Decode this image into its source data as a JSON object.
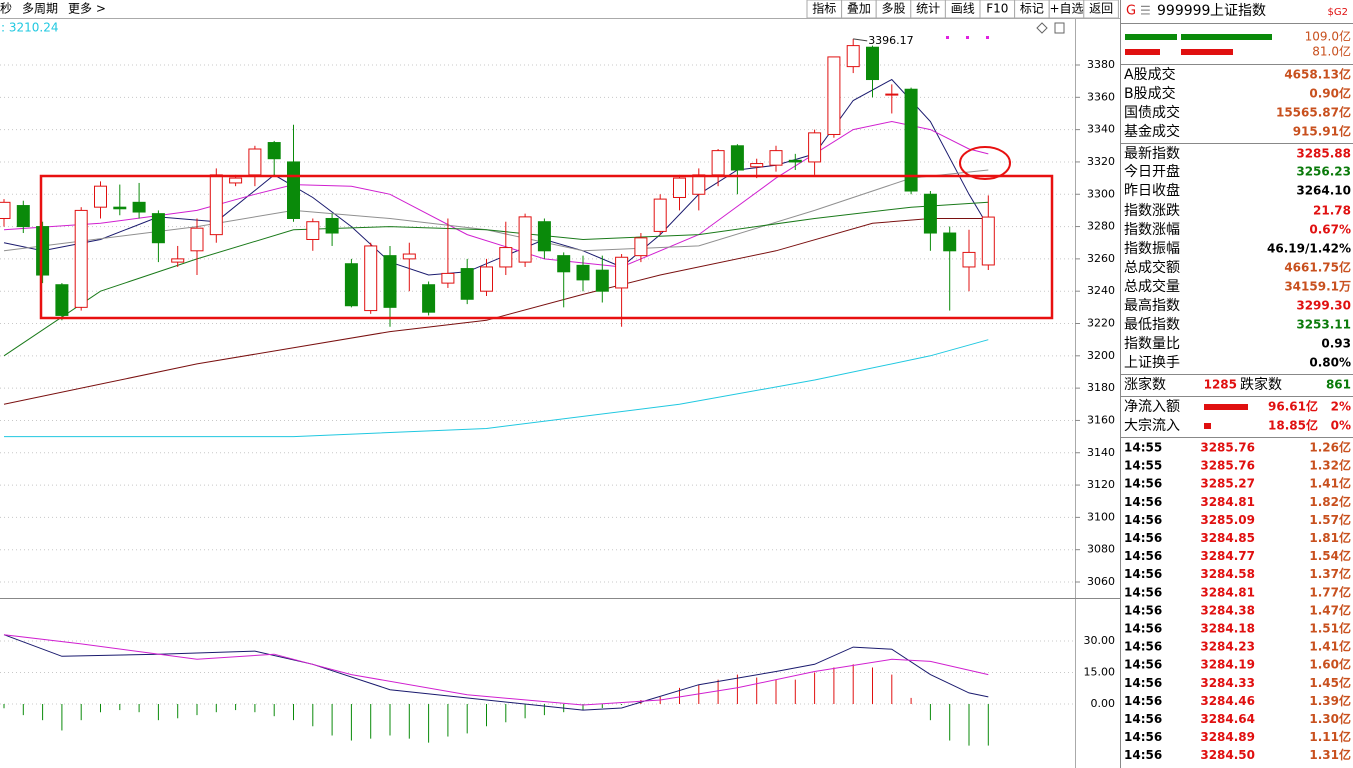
{
  "toolbar": {
    "left": [
      "秒",
      "多周期",
      "更多 >"
    ],
    "buttons": [
      "指标",
      "叠加",
      "多股",
      "统计",
      "画线",
      "F10",
      "标记",
      "+自选",
      "返回"
    ]
  },
  "kline": {
    "ma_label": ": 3210.24",
    "up_color": "#e01010",
    "down_color": "#0a8a0a",
    "price_ticks": [
      3380,
      3360,
      3340,
      3320,
      3300,
      3280,
      3260,
      3240,
      3220,
      3200,
      3180,
      3160,
      3140,
      3120,
      3100,
      3080,
      3060
    ],
    "candles": [
      {
        "open": 3285,
        "high": 3297,
        "low": 3280,
        "close": 3295
      },
      {
        "open": 3293,
        "high": 3296,
        "low": 3276,
        "close": 3280
      },
      {
        "open": 3280,
        "high": 3283,
        "low": 3245,
        "close": 3250
      },
      {
        "open": 3244,
        "high": 3245,
        "low": 3222,
        "close": 3225
      },
      {
        "open": 3230,
        "high": 3292,
        "low": 3228,
        "close": 3290
      },
      {
        "open": 3292,
        "high": 3308,
        "low": 3285,
        "close": 3305
      },
      {
        "open": 3292,
        "high": 3306,
        "low": 3287,
        "close": 3291
      },
      {
        "open": 3295,
        "high": 3307,
        "low": 3285,
        "close": 3289
      },
      {
        "open": 3288,
        "high": 3290,
        "low": 3258,
        "close": 3270
      },
      {
        "open": 3258,
        "high": 3268,
        "low": 3255,
        "close": 3260
      },
      {
        "open": 3265,
        "high": 3285,
        "low": 3250,
        "close": 3279
      },
      {
        "open": 3275,
        "high": 3316,
        "low": 3270,
        "close": 3312
      },
      {
        "open": 3307,
        "high": 3312,
        "low": 3305,
        "close": 3310
      },
      {
        "open": 3312,
        "high": 3330,
        "low": 3305,
        "close": 3328
      },
      {
        "open": 3332,
        "high": 3333,
        "low": 3312,
        "close": 3322
      },
      {
        "open": 3320,
        "high": 3343,
        "low": 3283,
        "close": 3285
      },
      {
        "open": 3272,
        "high": 3285,
        "low": 3265,
        "close": 3283
      },
      {
        "open": 3285,
        "high": 3288,
        "low": 3268,
        "close": 3276
      },
      {
        "open": 3257,
        "high": 3260,
        "low": 3230,
        "close": 3231
      },
      {
        "open": 3228,
        "high": 3270,
        "low": 3226,
        "close": 3268
      },
      {
        "open": 3262,
        "high": 3268,
        "low": 3218,
        "close": 3230
      },
      {
        "open": 3260,
        "high": 3270,
        "low": 3240,
        "close": 3263
      },
      {
        "open": 3244,
        "high": 3246,
        "low": 3225,
        "close": 3227
      },
      {
        "open": 3245,
        "high": 3285,
        "low": 3242,
        "close": 3251
      },
      {
        "open": 3254,
        "high": 3260,
        "low": 3232,
        "close": 3235
      },
      {
        "open": 3240,
        "high": 3260,
        "low": 3237,
        "close": 3255
      },
      {
        "open": 3255,
        "high": 3283,
        "low": 3250,
        "close": 3267
      },
      {
        "open": 3258,
        "high": 3288,
        "low": 3255,
        "close": 3286
      },
      {
        "open": 3283,
        "high": 3285,
        "low": 3260,
        "close": 3265
      },
      {
        "open": 3262,
        "high": 3264,
        "low": 3230,
        "close": 3252
      },
      {
        "open": 3256,
        "high": 3262,
        "low": 3240,
        "close": 3247
      },
      {
        "open": 3253,
        "high": 3262,
        "low": 3233,
        "close": 3240
      },
      {
        "open": 3242,
        "high": 3263,
        "low": 3218,
        "close": 3261
      },
      {
        "open": 3262,
        "high": 3276,
        "low": 3258,
        "close": 3273
      },
      {
        "open": 3277,
        "high": 3300,
        "low": 3275,
        "close": 3297
      },
      {
        "open": 3298,
        "high": 3312,
        "low": 3290,
        "close": 3310
      },
      {
        "open": 3300,
        "high": 3316,
        "low": 3290,
        "close": 3312
      },
      {
        "open": 3312,
        "high": 3328,
        "low": 3305,
        "close": 3327
      },
      {
        "open": 3330,
        "high": 3331,
        "low": 3300,
        "close": 3315
      },
      {
        "open": 3317,
        "high": 3322,
        "low": 3310,
        "close": 3319
      },
      {
        "open": 3318,
        "high": 3330,
        "low": 3314,
        "close": 3327
      },
      {
        "open": 3321,
        "high": 3325,
        "low": 3315,
        "close": 3320
      },
      {
        "open": 3320,
        "high": 3340,
        "low": 3312,
        "close": 3338
      },
      {
        "open": 3337,
        "high": 3385,
        "low": 3335,
        "close": 3385
      },
      {
        "open": 3379,
        "high": 3396.17,
        "low": 3375,
        "close": 3392
      },
      {
        "open": 3391,
        "high": 3392,
        "low": 3360,
        "close": 3371
      },
      {
        "open": 3362,
        "high": 3368,
        "low": 3350,
        "close": 3362
      },
      {
        "open": 3365,
        "high": 3366,
        "low": 3300,
        "close": 3302
      },
      {
        "open": 3300,
        "high": 3302,
        "low": 3265,
        "close": 3276
      },
      {
        "open": 3276,
        "high": 3280,
        "low": 3228,
        "close": 3265
      },
      {
        "open": 3255,
        "high": 3278,
        "low": 3240,
        "close": 3264
      },
      {
        "open": 3256.23,
        "high": 3299.3,
        "low": 3253.11,
        "close": 3285.88
      }
    ],
    "ma": [
      {
        "color": "#1a1a6e",
        "x": [
          0,
          2,
          5,
          8,
          11,
          14,
          16,
          18,
          20,
          22,
          24,
          26,
          28,
          30,
          32,
          34,
          36,
          38,
          40,
          42,
          44,
          46,
          48,
          50,
          51
        ],
        "values": [
          3270,
          3265,
          3272,
          3286,
          3283,
          3312,
          3298,
          3280,
          3258,
          3250,
          3252,
          3262,
          3272,
          3265,
          3255,
          3275,
          3300,
          3315,
          3318,
          3325,
          3358,
          3371,
          3345,
          3300,
          3280
        ]
      },
      {
        "color": "#d020d0",
        "x": [
          0,
          5,
          10,
          13,
          15,
          18,
          20,
          24,
          28,
          32,
          36,
          40,
          44,
          46,
          48,
          50,
          51
        ],
        "values": [
          3278,
          3282,
          3290,
          3300,
          3306,
          3305,
          3300,
          3275,
          3260,
          3255,
          3275,
          3310,
          3340,
          3345,
          3340,
          3328,
          3325
        ]
      },
      {
        "color": "#909090",
        "x": [
          0,
          10,
          15,
          20,
          25,
          30,
          36,
          42,
          47,
          51
        ],
        "values": [
          3265,
          3280,
          3290,
          3285,
          3278,
          3265,
          3268,
          3290,
          3310,
          3315
        ]
      },
      {
        "color": "#1a7a1a",
        "x": [
          0,
          5,
          10,
          15,
          20,
          25,
          30,
          36,
          42,
          47,
          51
        ],
        "values": [
          3200,
          3240,
          3260,
          3278,
          3280,
          3278,
          3272,
          3275,
          3285,
          3292,
          3295
        ]
      },
      {
        "color": "#7a1010",
        "x": [
          0,
          10,
          20,
          25,
          30,
          34,
          40,
          45,
          48,
          51
        ],
        "values": [
          3170,
          3195,
          3215,
          3222,
          3238,
          3250,
          3265,
          3282,
          3285,
          3285
        ]
      },
      {
        "color": "#20c8e0",
        "x": [
          0,
          15,
          25,
          35,
          42,
          48,
          51
        ],
        "values": [
          3150,
          3150,
          3155,
          3170,
          3185,
          3200,
          3210
        ]
      }
    ],
    "macd": {
      "ticks": [
        {
          "value": 30,
          "label": "30.00"
        },
        {
          "value": 15,
          "label": "15.00"
        },
        {
          "value": 0,
          "label": "0.00"
        }
      ],
      "hist": [
        -2,
        -5.3,
        -7.7,
        -12.6,
        -7.7,
        -3.9,
        -2.9,
        -3.9,
        -7.7,
        -6.8,
        -5.3,
        -3.9,
        -2.9,
        -3.9,
        -5.8,
        -7.7,
        -10.6,
        -15,
        -17.4,
        -16.5,
        -15,
        -16.5,
        -18.4,
        -15.5,
        -14,
        -10.6,
        -8.7,
        -6.8,
        -5.3,
        -3.9,
        -2.9,
        -1.9,
        -0.5,
        1.9,
        3.4,
        7.7,
        9.2,
        11.6,
        14,
        12.6,
        11.6,
        11.6,
        15,
        17.4,
        18.9,
        17.4,
        14,
        2.9,
        -7.7,
        -17.4,
        -19.8,
        -19.8
      ],
      "dif": {
        "color": "#1a1a6e",
        "x": [
          0,
          3,
          8,
          13,
          16,
          20,
          25,
          30,
          32,
          36,
          40,
          42,
          44,
          46,
          48,
          50,
          51
        ],
        "values": [
          33,
          22.7,
          23.7,
          25.2,
          18.9,
          6.8,
          1.9,
          -2.9,
          -1.9,
          9.2,
          15.5,
          18.9,
          27.1,
          26.1,
          14,
          5.3,
          3.4
        ]
      },
      "dea": {
        "color": "#d020d0",
        "x": [
          0,
          4,
          10,
          14,
          18,
          24,
          30,
          34,
          38,
          42,
          46,
          48,
          51
        ],
        "values": [
          33,
          28.6,
          21.3,
          23.7,
          14,
          4.4,
          -0.5,
          1.9,
          7.7,
          15.5,
          21.3,
          20.3,
          14
        ]
      }
    }
  },
  "panel": {
    "flag": "G",
    "code": "999999",
    "name": "上证指数",
    "tag": "$G2",
    "bar_values": [
      "109.0亿",
      "81.0亿"
    ],
    "stats": [
      {
        "label": "A股成交",
        "value": "4658.13亿",
        "color": "#c8501e"
      },
      {
        "label": "B股成交",
        "value": "0.90亿",
        "color": "#c8501e"
      },
      {
        "label": "国债成交",
        "value": "15565.87亿",
        "color": "#c8501e"
      },
      {
        "label": "基金成交",
        "value": "915.91亿",
        "color": "#c8501e"
      },
      {
        "label": "最新指数",
        "value": "3285.88",
        "color": "#e01010"
      },
      {
        "label": "今日开盘",
        "value": "3256.23",
        "color": "#0a7a0a"
      },
      {
        "label": "昨日收盘",
        "value": "3264.10",
        "color": "#000000"
      },
      {
        "label": "指数涨跌",
        "value": "21.78",
        "color": "#e01010"
      },
      {
        "label": "指数涨幅",
        "value": "0.67%",
        "color": "#e01010"
      },
      {
        "label": "指数振幅",
        "value": "46.19/1.42%",
        "color": "#000000"
      },
      {
        "label": "总成交额",
        "value": "4661.75亿",
        "color": "#c8501e"
      },
      {
        "label": "总成交量",
        "value": "34159.1万",
        "color": "#c8501e"
      },
      {
        "label": "最高指数",
        "value": "3299.30",
        "color": "#e01010"
      },
      {
        "label": "最低指数",
        "value": "3253.11",
        "color": "#0a7a0a"
      },
      {
        "label": "指数量比",
        "value": "0.93",
        "color": "#000000"
      },
      {
        "label": "上证换手",
        "value": "0.80%",
        "color": "#000000"
      }
    ],
    "breadth": {
      "up_label": "涨家数",
      "up": "1285",
      "down_label": "跌家数",
      "down": "861"
    },
    "flows": [
      {
        "label": "净流入额",
        "value": "96.61亿",
        "pct": "2%"
      },
      {
        "label": "大宗流入",
        "value": "18.85亿",
        "pct": "0%"
      }
    ],
    "ticks": [
      [
        "14:55",
        "3285.76",
        "1.26亿"
      ],
      [
        "14:55",
        "3285.76",
        "1.32亿"
      ],
      [
        "14:56",
        "3285.27",
        "1.41亿"
      ],
      [
        "14:56",
        "3284.81",
        "1.82亿"
      ],
      [
        "14:56",
        "3285.09",
        "1.57亿"
      ],
      [
        "14:56",
        "3284.85",
        "1.81亿"
      ],
      [
        "14:56",
        "3284.77",
        "1.54亿"
      ],
      [
        "14:56",
        "3284.58",
        "1.37亿"
      ],
      [
        "14:56",
        "3284.81",
        "1.77亿"
      ],
      [
        "14:56",
        "3284.38",
        "1.47亿"
      ],
      [
        "14:56",
        "3284.18",
        "1.51亿"
      ],
      [
        "14:56",
        "3284.23",
        "1.41亿"
      ],
      [
        "14:56",
        "3284.19",
        "1.60亿"
      ],
      [
        "14:56",
        "3284.33",
        "1.45亿"
      ],
      [
        "14:56",
        "3284.46",
        "1.39亿"
      ],
      [
        "14:56",
        "3284.64",
        "1.30亿"
      ],
      [
        "14:56",
        "3284.89",
        "1.11亿"
      ],
      [
        "14:56",
        "3284.50",
        "1.31亿"
      ]
    ]
  }
}
